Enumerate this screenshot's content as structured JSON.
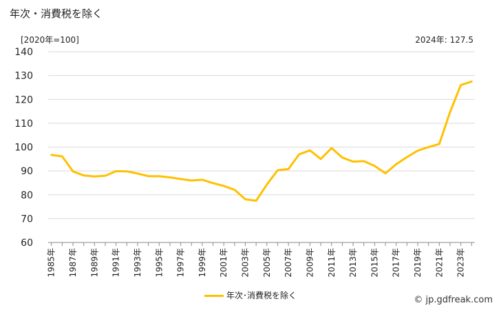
{
  "title": "年次・消費税を除く",
  "unit_label": "[2020年=100]",
  "latest_label": "2024年: 127.5",
  "legend_label": "年次･消費税を除く",
  "copyright": "© jp.gdfreak.com",
  "colors": {
    "line": "#ffc000",
    "grid": "#d9d9d9",
    "axis": "#888888",
    "text": "#222222"
  },
  "chart_data": {
    "type": "line",
    "x": [
      1985,
      1986,
      1987,
      1988,
      1989,
      1990,
      1991,
      1992,
      1993,
      1994,
      1995,
      1996,
      1997,
      1998,
      1999,
      2000,
      2001,
      2002,
      2003,
      2004,
      2005,
      2006,
      2007,
      2008,
      2009,
      2010,
      2011,
      2012,
      2013,
      2014,
      2015,
      2016,
      2017,
      2018,
      2019,
      2020,
      2021,
      2022,
      2023,
      2024
    ],
    "series": [
      {
        "name": "年次･消費税を除く",
        "values": [
          96.7,
          96.1,
          89.8,
          88.1,
          87.7,
          88.0,
          89.9,
          89.8,
          88.9,
          87.8,
          87.8,
          87.3,
          86.6,
          86.0,
          86.3,
          84.9,
          83.7,
          82.1,
          78.1,
          77.5,
          84.3,
          90.3,
          90.8,
          97.0,
          98.6,
          95.0,
          99.6,
          95.6,
          93.9,
          94.1,
          92.1,
          89.0,
          92.8,
          95.8,
          98.5,
          100.0,
          101.3,
          114.7,
          126.0,
          127.5
        ]
      }
    ],
    "xticks": [
      "1985年",
      "1987年",
      "1989年",
      "1991年",
      "1993年",
      "1995年",
      "1997年",
      "1999年",
      "2001年",
      "2003年",
      "2005年",
      "2007年",
      "2009年",
      "2011年",
      "2013年",
      "2015年",
      "2017年",
      "2019年",
      "2021年",
      "2023年"
    ],
    "ylim": [
      60,
      140
    ],
    "yticks": [
      60,
      70,
      80,
      90,
      100,
      110,
      120,
      130,
      140
    ],
    "grid": true,
    "legend_position": "bottom"
  }
}
